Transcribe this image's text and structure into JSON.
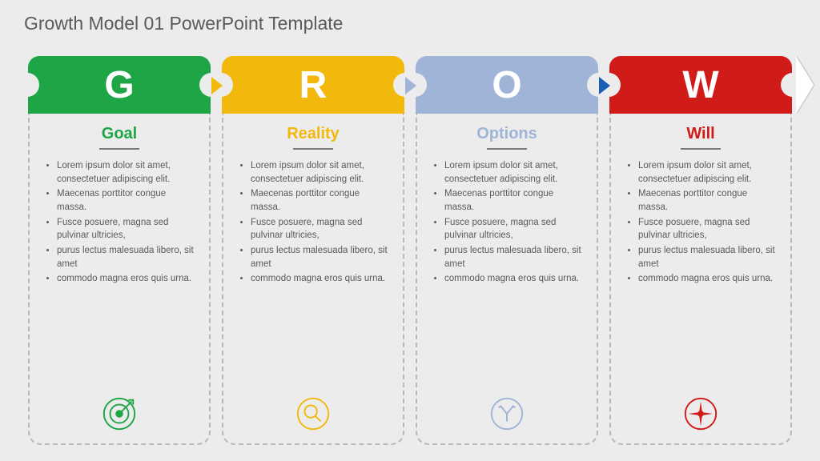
{
  "title": "Growth Model 01 PowerPoint Template",
  "background_color": "#ececed",
  "dashed_border_color": "#b9b9b9",
  "title_color": "#5a5a5a",
  "title_fontsize": 23,
  "letter_fontsize": 48,
  "subtitle_fontsize": 20,
  "bullet_fontsize": 11.5,
  "columns": [
    {
      "letter": "G",
      "subtitle": "Goal",
      "color": "#1ea646",
      "icon": "target-icon",
      "bullets": [
        "Lorem ipsum dolor sit amet, consectetuer adipiscing elit.",
        "Maecenas porttitor congue massa.",
        "Fusce posuere, magna sed pulvinar ultricies,",
        "purus lectus malesuada libero, sit amet",
        "commodo magna eros quis urna."
      ]
    },
    {
      "letter": "R",
      "subtitle": "Reality",
      "color": "#f2b90c",
      "icon": "magnifier-icon",
      "bullets": [
        "Lorem ipsum dolor sit amet, consectetuer adipiscing elit.",
        "Maecenas porttitor congue massa.",
        "Fusce posuere, magna sed pulvinar ultricies,",
        "purus lectus malesuada libero, sit amet",
        "commodo magna eros quis urna."
      ]
    },
    {
      "letter": "O",
      "subtitle": "Options",
      "color": "#9fb4d6",
      "icon": "fork-icon",
      "bullets": [
        "Lorem ipsum dolor sit amet, consectetuer adipiscing elit.",
        "Maecenas porttitor congue massa.",
        "Fusce posuere, magna sed pulvinar ultricies,",
        "purus lectus malesuada libero, sit amet",
        "commodo magna eros quis urna."
      ]
    },
    {
      "letter": "W",
      "subtitle": "Will",
      "color": "#d01b18",
      "icon": "compass-icon",
      "bullets": [
        "Lorem ipsum dolor sit amet, consectetuer adipiscing elit.",
        "Maecenas porttitor congue massa.",
        "Fusce posuere, magna sed pulvinar ultricies,",
        "purus lectus malesuada libero, sit amet",
        "commodo magna eros quis urna."
      ]
    }
  ],
  "connectors": {
    "play_color_by_next": [
      "#f2b90c",
      "#9fb4d6",
      "#1b5fb5"
    ],
    "comment": "small right-pointing triangles between tabs; color matches upcoming segment (blue before W per image)"
  },
  "endarrow_color": "#ffffff"
}
